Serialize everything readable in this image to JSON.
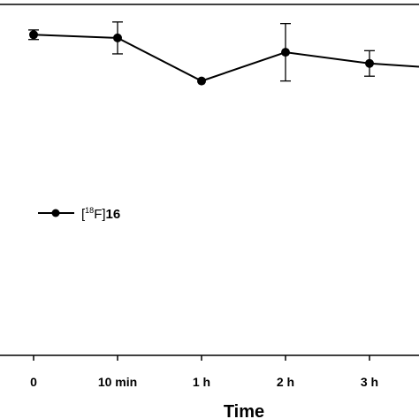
{
  "chart_data": {
    "type": "line",
    "xlabel": "Time",
    "ylabel": "",
    "categories": [
      "0",
      "10 min",
      "1 h",
      "2 h",
      "3 h"
    ],
    "ylim": [
      0,
      110
    ],
    "grid": false,
    "legend_position": "left",
    "series": [
      {
        "label_parts": {
          "open": "[",
          "sup": "18",
          "mid": "F]",
          "bold": "16"
        },
        "color": "#000000",
        "values": [
          100.5,
          99.5,
          86,
          95,
          91.5
        ],
        "errors": [
          1.5,
          5,
          0,
          9,
          4
        ]
      }
    ]
  }
}
